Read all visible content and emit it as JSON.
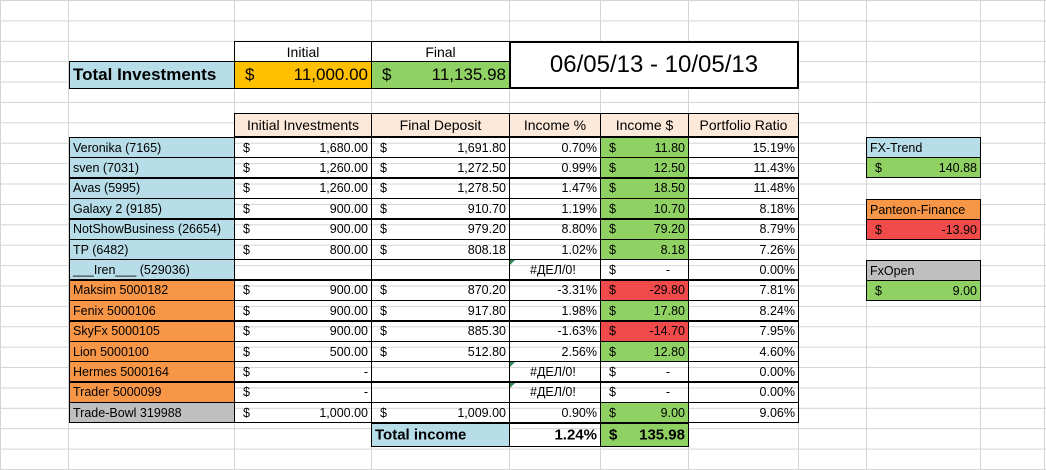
{
  "summary": {
    "initial_label": "Initial",
    "final_label": "Final",
    "total_label": "Total Investments",
    "currency": "$",
    "initial_value": "11,000.00",
    "final_value": "11,135.98",
    "date_range": "06/05/13 - 10/05/13"
  },
  "headers": {
    "initial": "Initial Investments",
    "final": "Final Deposit",
    "income_pct": "Income %",
    "income_usd": "Income $",
    "ratio": "Portfolio Ratio"
  },
  "rows": [
    {
      "name": "Veronika (7165)",
      "color": "blue",
      "init": "1,680.00",
      "final": "1,691.80",
      "pct": "0.70%",
      "inc": "11.80",
      "inc_color": "green",
      "ratio": "15.19%"
    },
    {
      "name": "sven (7031)",
      "color": "blue",
      "init": "1,260.00",
      "final": "1,272.50",
      "pct": "0.99%",
      "inc": "12.50",
      "inc_color": "green",
      "ratio": "11.43%"
    },
    {
      "name": "Avas (5995)",
      "color": "blue",
      "init": "1,260.00",
      "final": "1,278.50",
      "pct": "1.47%",
      "inc": "18.50",
      "inc_color": "green",
      "ratio": "11.48%"
    },
    {
      "name": "Galaxy 2 (9185)",
      "color": "blue",
      "init": "900.00",
      "final": "910.70",
      "pct": "1.19%",
      "inc": "10.70",
      "inc_color": "green",
      "ratio": "8.18%"
    },
    {
      "name": "NotShowBusiness (26654)",
      "color": "blue",
      "init": "900.00",
      "final": "979.20",
      "pct": "8.80%",
      "inc": "79.20",
      "inc_color": "green",
      "ratio": "8.79%"
    },
    {
      "name": "TP (6482)",
      "color": "blue",
      "init": "800.00",
      "final": "808.18",
      "pct": "1.02%",
      "inc": "8.18",
      "inc_color": "green",
      "ratio": "7.26%"
    },
    {
      "name": "___Iren___ (529036)",
      "color": "blue",
      "init": "",
      "final": "",
      "pct": "#ДЕЛ/0!",
      "inc": "-",
      "inc_color": "none",
      "ratio": "0.00%",
      "flag": true
    },
    {
      "name": "Maksim 5000182",
      "color": "orange",
      "init": "900.00",
      "final": "870.20",
      "pct": "-3.31%",
      "inc": "-29.80",
      "inc_color": "red",
      "ratio": "7.81%"
    },
    {
      "name": "Fenix 5000106",
      "color": "orange",
      "init": "900.00",
      "final": "917.80",
      "pct": "1.98%",
      "inc": "17.80",
      "inc_color": "green",
      "ratio": "8.24%"
    },
    {
      "name": "SkyFx 5000105",
      "color": "orange",
      "init": "900.00",
      "final": "885.30",
      "pct": "-1.63%",
      "inc": "-14.70",
      "inc_color": "red",
      "ratio": "7.95%"
    },
    {
      "name": "Lion 5000100",
      "color": "orange",
      "init": "500.00",
      "final": "512.80",
      "pct": "2.56%",
      "inc": "12.80",
      "inc_color": "green",
      "ratio": "4.60%"
    },
    {
      "name": "Hermes 5000164",
      "color": "orange",
      "init": "-",
      "final": "",
      "pct": "#ДЕЛ/0!",
      "inc": "-",
      "inc_color": "none",
      "ratio": "0.00%",
      "flag": true
    },
    {
      "name": "Trader 5000099",
      "color": "orange",
      "init": "-",
      "final": "",
      "pct": "#ДЕЛ/0!",
      "inc": "-",
      "inc_color": "none",
      "ratio": "0.00%",
      "flag": true
    },
    {
      "name": "Trade-Bowl 319988",
      "color": "gray",
      "init": "1,000.00",
      "final": "1,009.00",
      "pct": "0.90%",
      "inc": "9.00",
      "inc_color": "green",
      "ratio": "9.06%"
    }
  ],
  "totals": {
    "label": "Total income",
    "pct": "1.24%",
    "value": "135.98"
  },
  "side": [
    {
      "name": "FX-Trend",
      "name_color": "blue",
      "value": "140.88",
      "value_color": "green"
    },
    {
      "name": "Panteon-Finance",
      "name_color": "orange",
      "value": "-13.90",
      "value_color": "red"
    },
    {
      "name": "FxOpen",
      "name_color": "gray",
      "value": "9.00",
      "value_color": "green"
    }
  ]
}
